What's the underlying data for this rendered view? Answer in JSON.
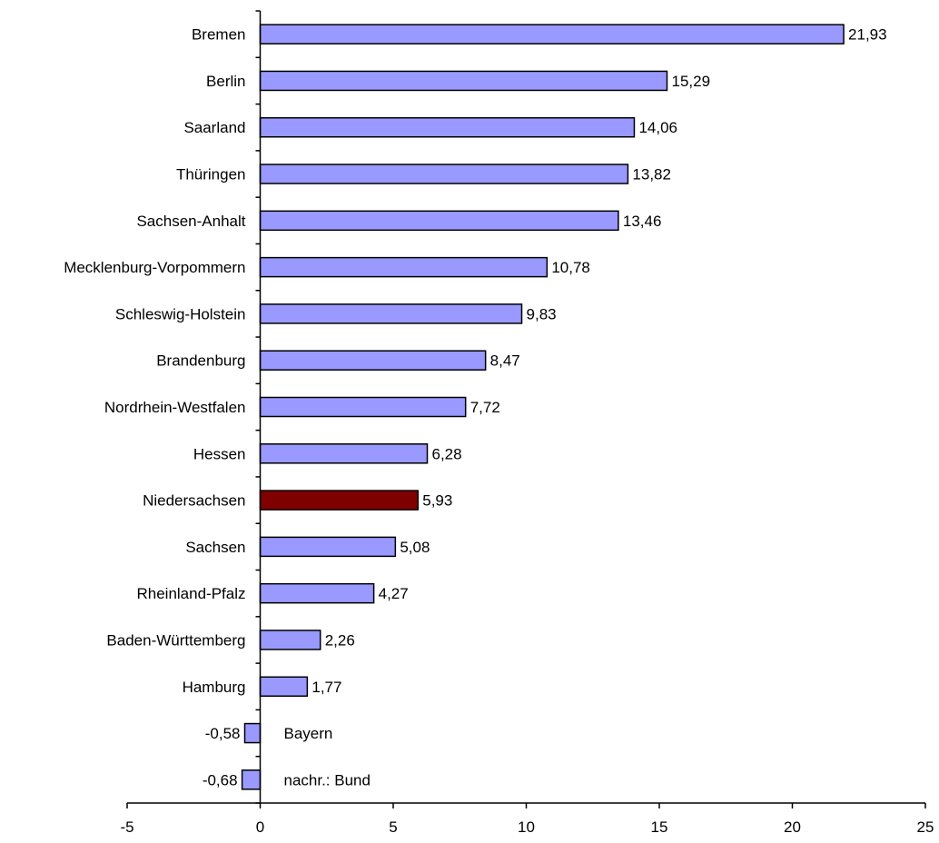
{
  "chart_data": {
    "type": "bar",
    "orientation": "horizontal",
    "title": "",
    "xlabel": "",
    "ylabel": "",
    "xlim": [
      -5,
      25
    ],
    "x_ticks": [
      "-5",
      "0",
      "5",
      "10",
      "15",
      "20",
      "25"
    ],
    "grid": false,
    "legend": "none",
    "colors": {
      "default_bar": "#9999ff",
      "highlight_bar": "#800000",
      "bar_outline": "#000000"
    },
    "bars": [
      {
        "category": "Bremen",
        "value": 21.93,
        "label": "21,93",
        "highlight": false
      },
      {
        "category": "Berlin",
        "value": 15.29,
        "label": "15,29",
        "highlight": false
      },
      {
        "category": "Saarland",
        "value": 14.06,
        "label": "14,06",
        "highlight": false
      },
      {
        "category": "Thüringen",
        "value": 13.82,
        "label": "13,82",
        "highlight": false
      },
      {
        "category": "Sachsen-Anhalt",
        "value": 13.46,
        "label": "13,46",
        "highlight": false
      },
      {
        "category": "Mecklenburg-Vorpommern",
        "value": 10.78,
        "label": "10,78",
        "highlight": false
      },
      {
        "category": "Schleswig-Holstein",
        "value": 9.83,
        "label": "9,83",
        "highlight": false
      },
      {
        "category": "Brandenburg",
        "value": 8.47,
        "label": "8,47",
        "highlight": false
      },
      {
        "category": "Nordrhein-Westfalen",
        "value": 7.72,
        "label": "7,72",
        "highlight": false
      },
      {
        "category": "Hessen",
        "value": 6.28,
        "label": "6,28",
        "highlight": false
      },
      {
        "category": "Niedersachsen",
        "value": 5.93,
        "label": "5,93",
        "highlight": true
      },
      {
        "category": "Sachsen",
        "value": 5.08,
        "label": "5,08",
        "highlight": false
      },
      {
        "category": "Rheinland-Pfalz",
        "value": 4.27,
        "label": "4,27",
        "highlight": false
      },
      {
        "category": "Baden-Württemberg",
        "value": 2.26,
        "label": "2,26",
        "highlight": false
      },
      {
        "category": "Hamburg",
        "value": 1.77,
        "label": "1,77",
        "highlight": false
      },
      {
        "category": "Bayern",
        "value": -0.58,
        "label": "-0,58",
        "highlight": false
      },
      {
        "category": "nachr.: Bund",
        "value": -0.68,
        "label": "-0,68",
        "highlight": false
      }
    ]
  }
}
